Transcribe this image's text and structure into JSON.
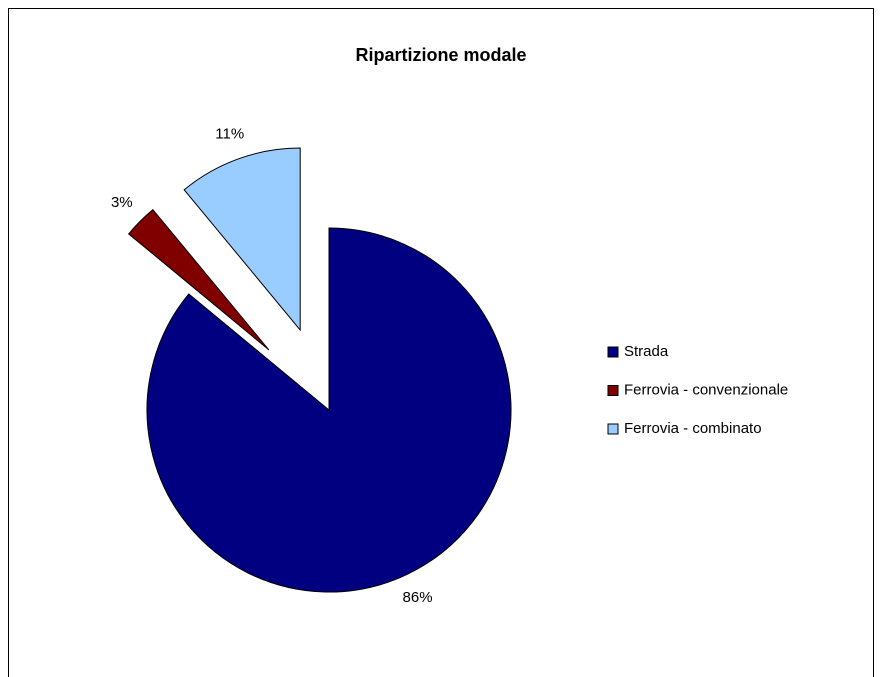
{
  "chart_data": {
    "type": "pie",
    "title": "Ripartizione modale",
    "categories": [
      "Strada",
      "Ferrovia - convenzionale",
      "Ferrovia - combinato"
    ],
    "values": [
      86,
      3,
      11
    ],
    "value_labels": [
      "86%",
      "3%",
      "11%"
    ],
    "colors": [
      "#000080",
      "#800000",
      "#99ccff"
    ],
    "exploded": [
      false,
      true,
      true
    ],
    "legend": "right"
  }
}
